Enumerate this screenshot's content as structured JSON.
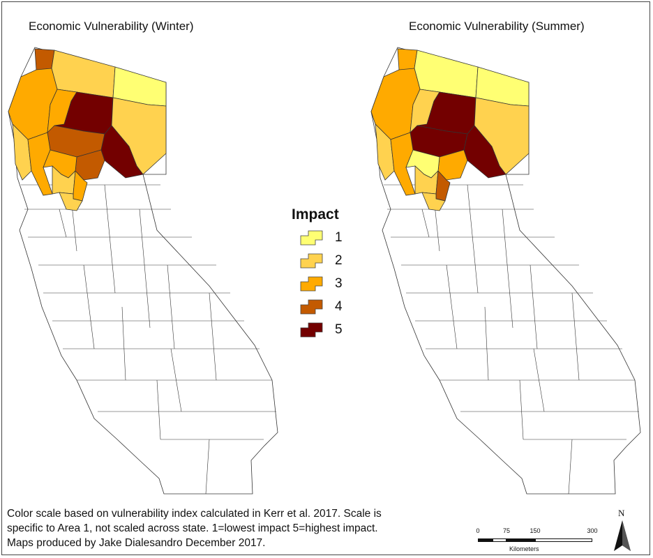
{
  "maps": [
    {
      "title": "Economic Vulnerability (Winter)"
    },
    {
      "title": "Economic Vulnerability (Summer)"
    }
  ],
  "legend": {
    "title": "Impact",
    "items": [
      {
        "label": "1",
        "color": "#ffff73"
      },
      {
        "label": "2",
        "color": "#ffd24f"
      },
      {
        "label": "3",
        "color": "#ffaa00"
      },
      {
        "label": "4",
        "color": "#c35a00"
      },
      {
        "label": "5",
        "color": "#730000"
      }
    ]
  },
  "caption": {
    "line1": "Color scale based on vulnerability index calculated in Kerr et al. 2017. Scale is",
    "line2": "specific to Area 1, not scaled across state. 1=lowest impact 5=highest impact.",
    "line3": "Maps produced by Jake Dialesandro December 2017."
  },
  "scale_bar": {
    "ticks": [
      "0",
      "75",
      "150",
      "300"
    ],
    "units": "Kilometers"
  },
  "north_arrow": {
    "label": "N"
  },
  "regions": {
    "winter": {
      "del-norte": 4,
      "siskiyou-west": 2,
      "siskiyou-east": 1,
      "humboldt-north": 3,
      "trinity": 3,
      "shasta": 5,
      "lassen-north": 2,
      "mendocino": 2,
      "tehama": 4,
      "plumas": 4,
      "sierra-nevada": 5,
      "lake": 3,
      "glenn-colusa": 3,
      "butte": 2,
      "yuba": 3,
      "sutter-yolo": 2
    },
    "summer": {
      "del-norte": 3,
      "siskiyou-west": 1,
      "siskiyou-east": 1,
      "humboldt-north": 3,
      "trinity": 2,
      "shasta": 5,
      "lassen-north": 2,
      "mendocino": 2,
      "tehama": 5,
      "plumas": 3,
      "sierra-nevada": 5,
      "lake": 3,
      "glenn-colusa": 1,
      "butte": 2,
      "yuba": 4,
      "sutter-yolo": 2
    }
  }
}
